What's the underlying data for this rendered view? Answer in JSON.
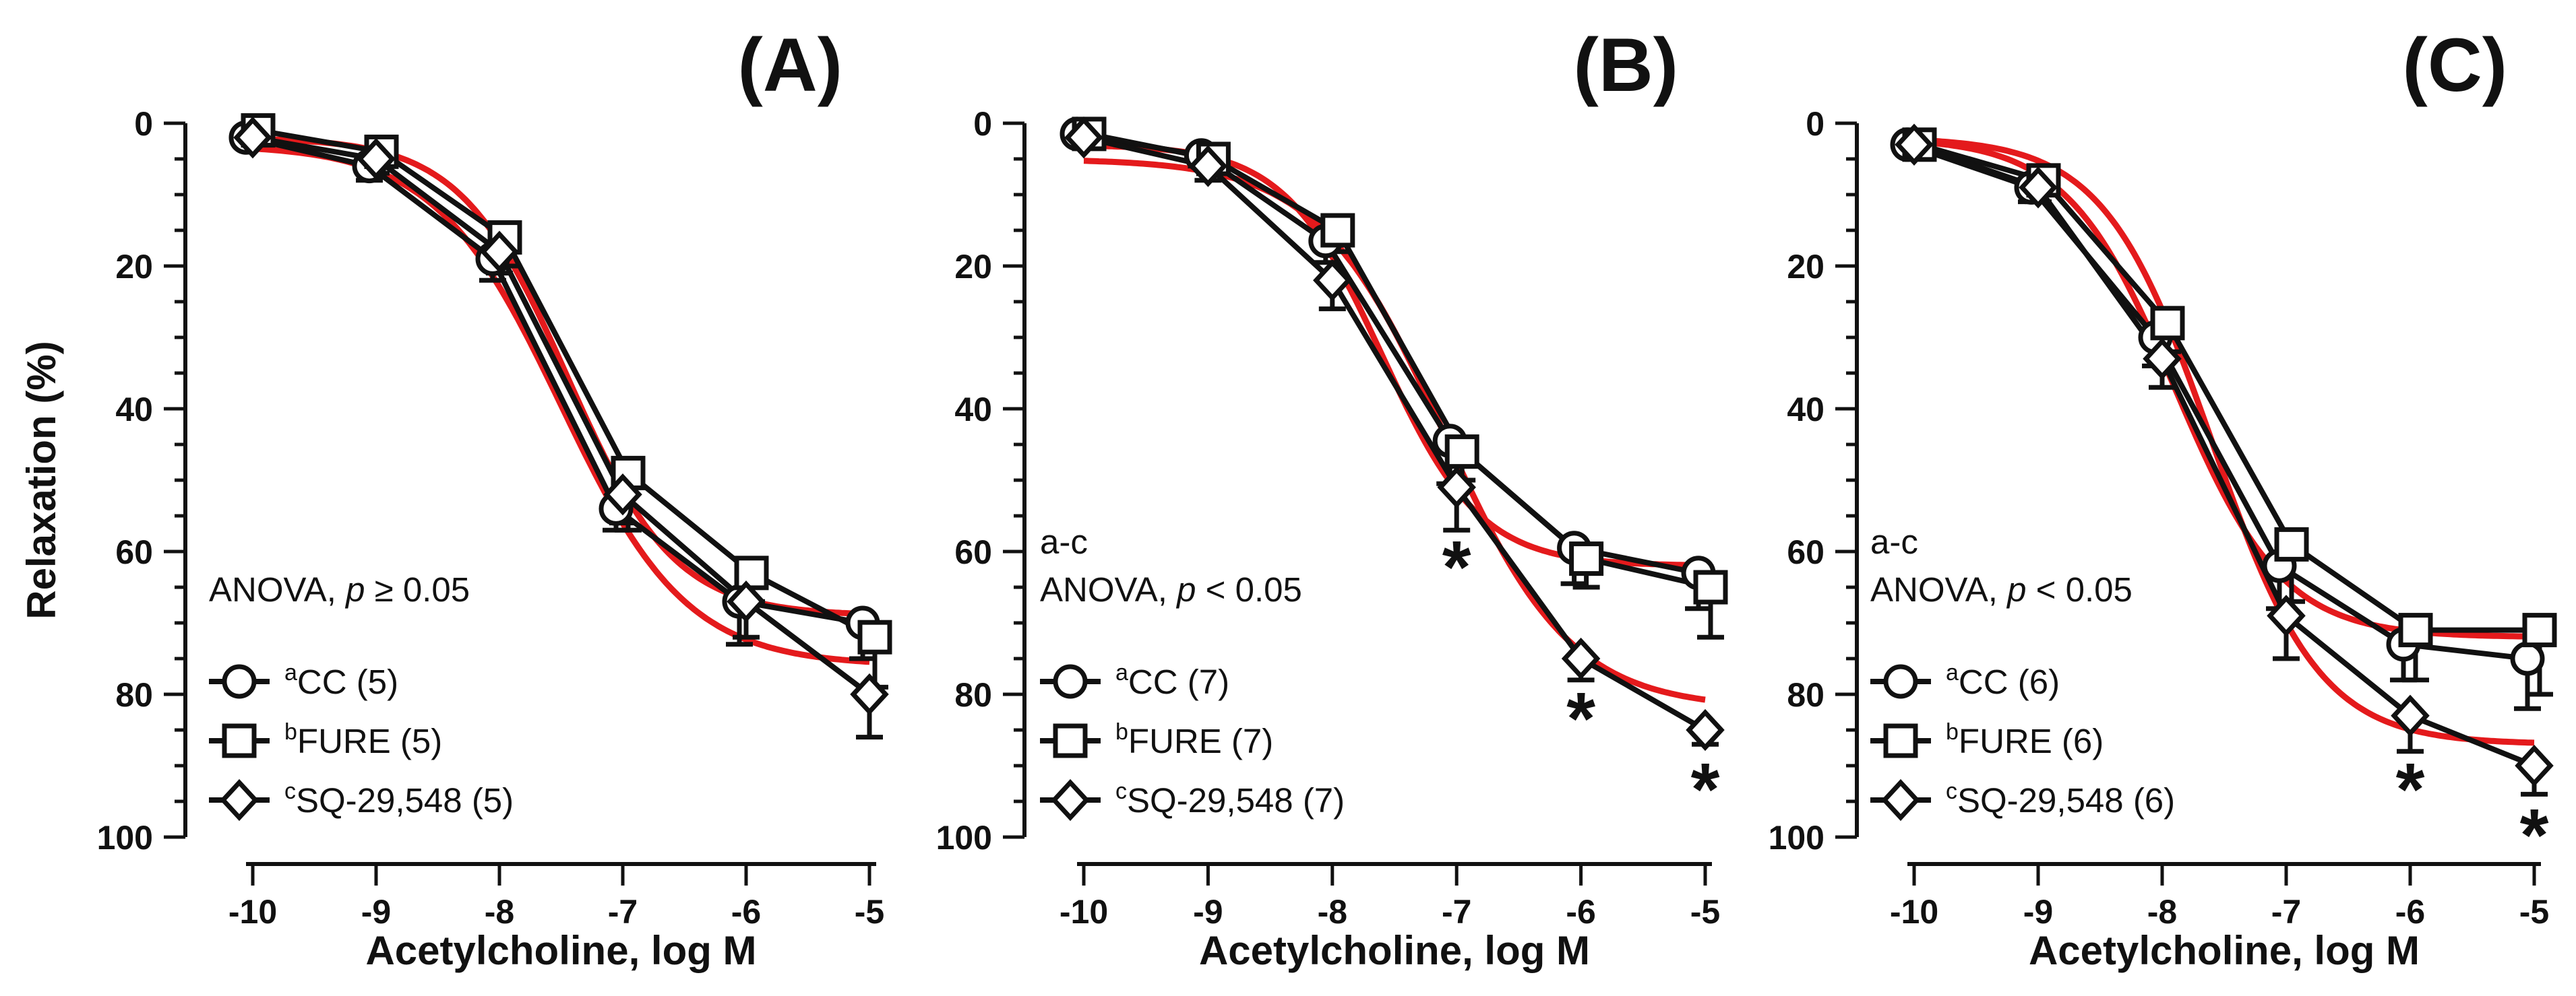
{
  "chart_data": [
    {
      "type": "line",
      "panel_label": "(A)",
      "xlabel": "Acetylcholine, log M",
      "ylabel": "Relaxation (%)",
      "xlim": [
        -10,
        -5
      ],
      "ylim": [
        0,
        100
      ],
      "y_inverted": true,
      "x_ticks": [
        "-10",
        "-9",
        "-8",
        "-7",
        "-6",
        "-5"
      ],
      "y_ticks": [
        "0",
        "20",
        "40",
        "60",
        "80",
        "100"
      ],
      "x": [
        -10,
        -9,
        -8,
        -7,
        -6,
        -5
      ],
      "annotation": {
        "line1": "",
        "prefix": "ANOVA, ",
        "p": "p",
        "suffix": " ≥ 0.05"
      },
      "series": [
        {
          "name": "CC (5)",
          "sup": "a",
          "marker": "circle",
          "values": [
            2,
            6,
            19,
            54,
            67,
            70
          ],
          "errors": [
            1,
            2,
            3,
            3,
            6,
            5
          ]
        },
        {
          "name": "FURE (5)",
          "sup": "b",
          "marker": "square",
          "values": [
            1,
            4,
            16,
            49,
            63,
            72
          ],
          "errors": [
            1,
            2,
            4,
            8,
            4,
            7
          ]
        },
        {
          "name": "SQ-29,548 (5)",
          "sup": "c",
          "marker": "diamond",
          "values": [
            2,
            5,
            18,
            52,
            67,
            80
          ],
          "errors": [
            1,
            2,
            3,
            4,
            5,
            6
          ]
        }
      ],
      "fits": [
        {
          "color": "#e41a1c",
          "bottom": 2,
          "top": 69,
          "logEC50": -7.45,
          "hill": 1.0
        },
        {
          "color": "#e41a1c",
          "bottom": 3,
          "top": 76,
          "logEC50": -7.5,
          "hill": 0.85
        }
      ],
      "significance": []
    },
    {
      "type": "line",
      "panel_label": "(B)",
      "xlabel": "Acetylcholine, log M",
      "ylabel": "",
      "xlim": [
        -10,
        -5
      ],
      "ylim": [
        0,
        100
      ],
      "y_inverted": true,
      "x_ticks": [
        "-10",
        "-9",
        "-8",
        "-7",
        "-6",
        "-5"
      ],
      "y_ticks": [
        "0",
        "20",
        "40",
        "60",
        "80",
        "100"
      ],
      "x": [
        -10,
        -9,
        -8,
        -7,
        -6,
        -5
      ],
      "annotation": {
        "line1": "a-c",
        "prefix": "ANOVA, ",
        "p": "p",
        "suffix": " < 0.05"
      },
      "series": [
        {
          "name": "CC (7)",
          "sup": "a",
          "marker": "circle",
          "values": [
            1.5,
            4.5,
            16.5,
            44.5,
            59.5,
            63
          ],
          "errors": [
            1,
            1.5,
            3,
            6,
            5,
            5
          ]
        },
        {
          "name": "FURE (7)",
          "sup": "b",
          "marker": "square",
          "values": [
            1.5,
            5,
            15,
            46,
            61,
            65
          ],
          "errors": [
            1,
            1.5,
            3,
            4,
            4,
            7
          ]
        },
        {
          "name": "SQ-29,548 (7)",
          "sup": "c",
          "marker": "diamond",
          "values": [
            2,
            6,
            22,
            51,
            75,
            85
          ],
          "errors": [
            1,
            2,
            4,
            6,
            3,
            2
          ]
        }
      ],
      "fits": [
        {
          "color": "#e41a1c",
          "bottom": 3,
          "top": 62,
          "logEC50": -7.6,
          "hill": 1.1
        },
        {
          "color": "#e41a1c",
          "bottom": 5,
          "top": 82,
          "logEC50": -7.1,
          "hill": 0.85
        }
      ],
      "significance": [
        {
          "x": -7,
          "row": 1,
          "label": "*"
        },
        {
          "x": -6,
          "row": 2,
          "label": "*"
        },
        {
          "x": -5,
          "row": 3,
          "label": "*"
        }
      ]
    },
    {
      "type": "line",
      "panel_label": "(C)",
      "xlabel": "Acetylcholine, log M",
      "ylabel": "",
      "xlim": [
        -10,
        -5
      ],
      "ylim": [
        0,
        100
      ],
      "y_inverted": true,
      "x_ticks": [
        "-10",
        "-9",
        "-8",
        "-7",
        "-6",
        "-5"
      ],
      "y_ticks": [
        "0",
        "20",
        "40",
        "60",
        "80",
        "100"
      ],
      "x": [
        -10,
        -9,
        -8,
        -7,
        -6,
        -5
      ],
      "annotation": {
        "line1": "a-c",
        "prefix": "ANOVA, ",
        "p": "p",
        "suffix": " < 0.05"
      },
      "series": [
        {
          "name": "CC (6)",
          "sup": "a",
          "marker": "circle",
          "values": [
            3,
            9,
            30,
            62,
            73,
            75
          ],
          "errors": [
            1,
            2,
            4,
            6,
            5,
            7
          ]
        },
        {
          "name": "FURE (6)",
          "sup": "b",
          "marker": "square",
          "values": [
            3,
            8,
            28,
            59,
            71,
            71
          ],
          "errors": [
            1,
            2,
            4,
            8,
            7,
            9
          ]
        },
        {
          "name": "SQ-29,548 (6)",
          "sup": "c",
          "marker": "diamond",
          "values": [
            3,
            9,
            33,
            69,
            83,
            90
          ],
          "errors": [
            1,
            2,
            4,
            6,
            5,
            4
          ]
        }
      ],
      "fits": [
        {
          "color": "#e41a1c",
          "bottom": 2,
          "top": 72,
          "logEC50": -7.9,
          "hill": 1.0
        },
        {
          "color": "#e41a1c",
          "bottom": 2,
          "top": 87,
          "logEC50": -7.6,
          "hill": 1.0
        }
      ],
      "significance": [
        {
          "x": -6,
          "row": 3,
          "label": "*"
        },
        {
          "x": -5,
          "row": 4,
          "label": "*"
        }
      ]
    }
  ]
}
